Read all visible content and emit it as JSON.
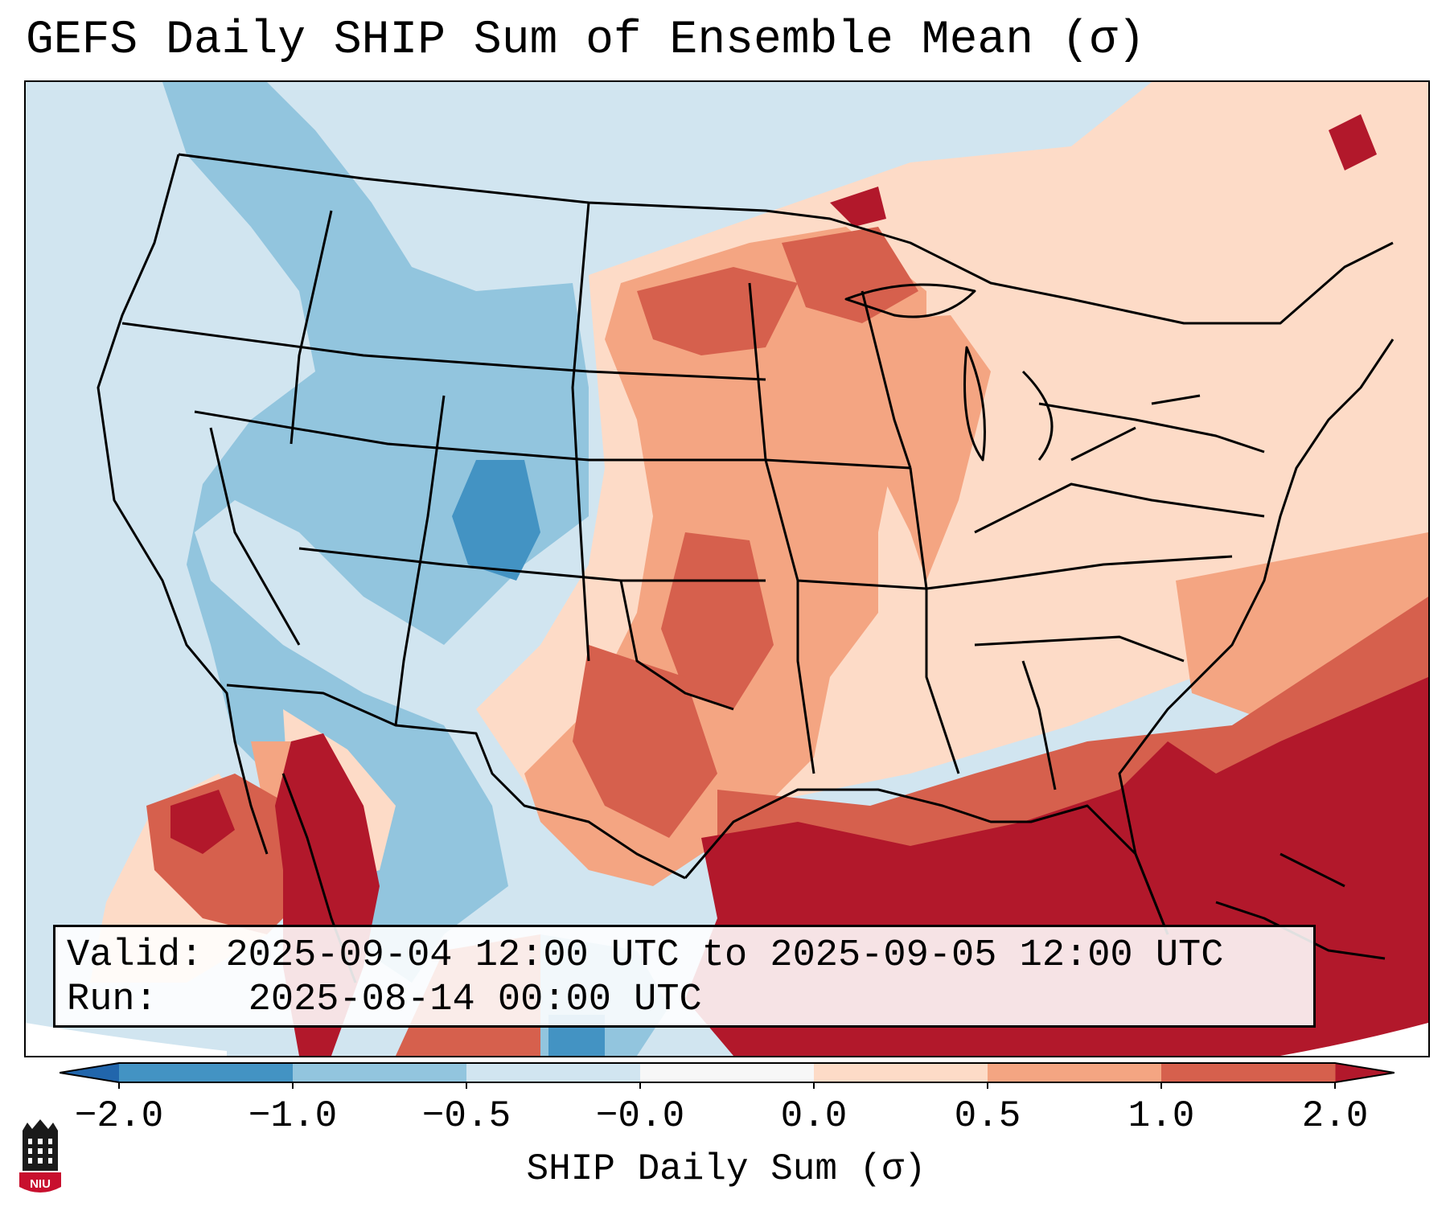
{
  "title": "GEFS Daily SHIP Sum of Ensemble Mean (σ)",
  "info_box": {
    "valid_label": "Valid:",
    "valid_value": "2025-09-04 12:00 UTC to 2025-09-05 12:00 UTC",
    "run_label": "Run:",
    "run_value": "2025-08-14 00:00 UTC"
  },
  "colorbar": {
    "label": "SHIP Daily Sum (σ)",
    "ticks": [
      "-2.0",
      "-1.0",
      "-0.5",
      "-0.0",
      "0.0",
      "0.5",
      "1.0",
      "2.0"
    ],
    "bin_colors": [
      "#4393c3",
      "#92c5de",
      "#d1e5f0",
      "#f7f7f7",
      "#fddbc7",
      "#f4a582",
      "#d6604d"
    ],
    "extend_low_color": "#2166ac",
    "extend_high_color": "#b2182b"
  },
  "logo": {
    "text": "NIU",
    "accent_color": "#c8102e"
  }
}
